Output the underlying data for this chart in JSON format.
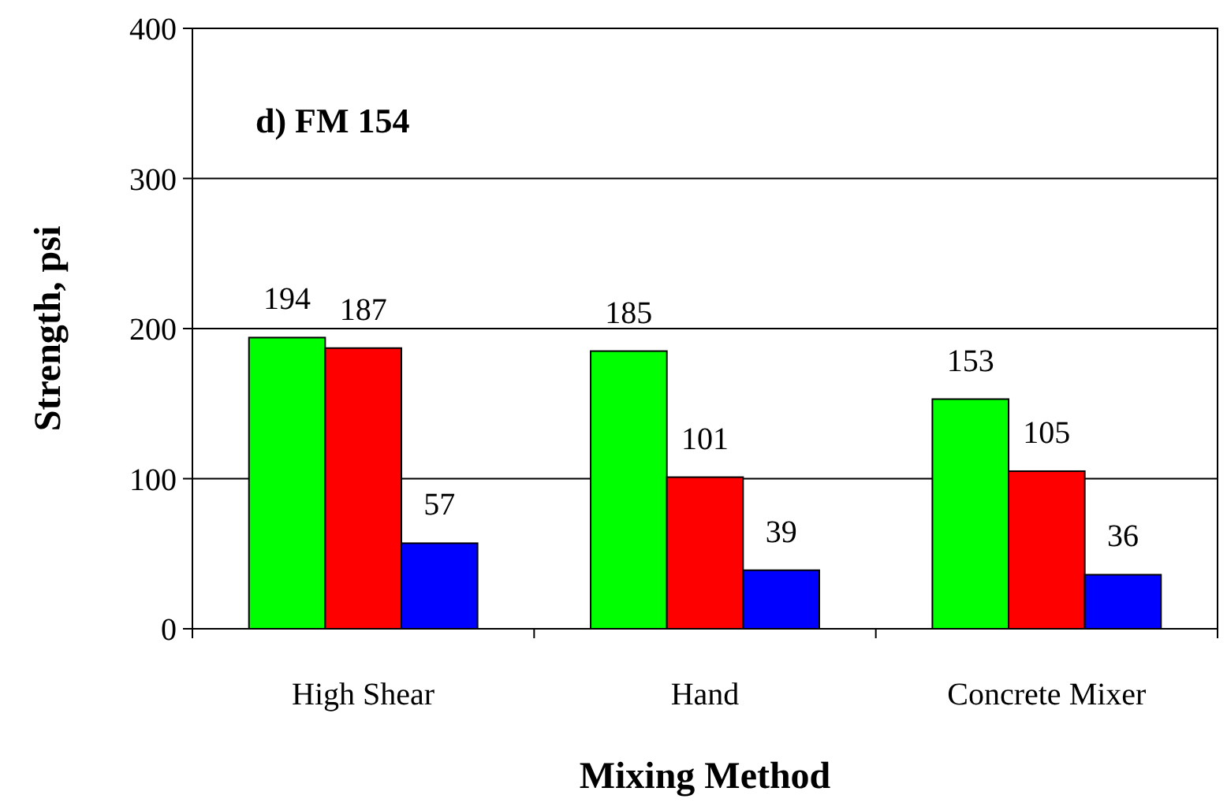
{
  "chart_data": {
    "type": "bar",
    "xlabel": "Mixing Method",
    "ylabel": "Strength, psi",
    "annotations": [
      "d) FM 154"
    ],
    "categories": [
      "High Shear",
      "Hand",
      "Concrete Mixer"
    ],
    "series": [
      {
        "color": "#00ff00",
        "values": [
          194,
          185,
          153
        ]
      },
      {
        "color": "#ff0000",
        "values": [
          187,
          101,
          105
        ]
      },
      {
        "color": "#0000ff",
        "values": [
          57,
          39,
          36
        ]
      }
    ],
    "ylim": [
      0,
      400
    ],
    "yticks": [
      0,
      100,
      200,
      300,
      400
    ],
    "grid": "y",
    "data_labels": true
  }
}
